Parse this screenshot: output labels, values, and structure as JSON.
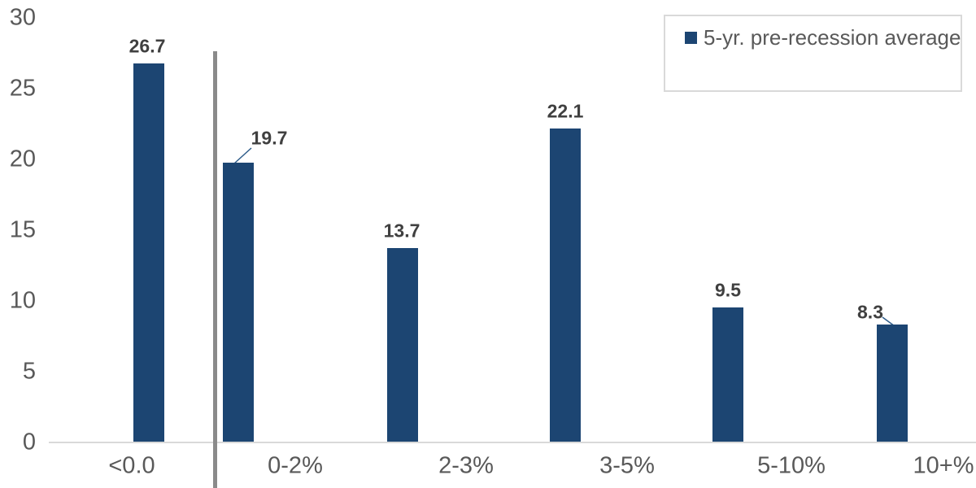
{
  "legend": {
    "label": "5-yr. pre-recession average"
  },
  "colors": {
    "bar": "#1c4572",
    "data_label_text": "#404040",
    "axis_text": "#595959",
    "axis_line": "#d9d9d9",
    "divider_line": "#8a8a8a",
    "leader_line": "#2e5c8a",
    "legend_border": "#d9d9d9",
    "background": "#ffffff"
  },
  "chart_data": {
    "type": "bar",
    "title": "",
    "xlabel": "",
    "ylabel": "",
    "categories": [
      "<0.0",
      "0-2%",
      "2-3%",
      "3-5%",
      "5-10%",
      "10+%"
    ],
    "series": [
      {
        "name": "5-yr. pre-recession average",
        "values": [
          26.7,
          19.7,
          13.7,
          22.1,
          9.5,
          8.3
        ]
      }
    ],
    "data_labels": [
      "26.7",
      "19.7",
      "13.7",
      "22.1",
      "9.5",
      "8.3"
    ],
    "ylim": [
      0,
      30
    ],
    "yticks": [
      0,
      5,
      10,
      15,
      20,
      25,
      30
    ],
    "grid": false,
    "legend_position": "top-right",
    "annotations": [
      "vertical gray divider line between <0.0 bar and 0-2% bar",
      "labels 19.7 and 8.3 connected to their bars with thin leader lines"
    ]
  }
}
